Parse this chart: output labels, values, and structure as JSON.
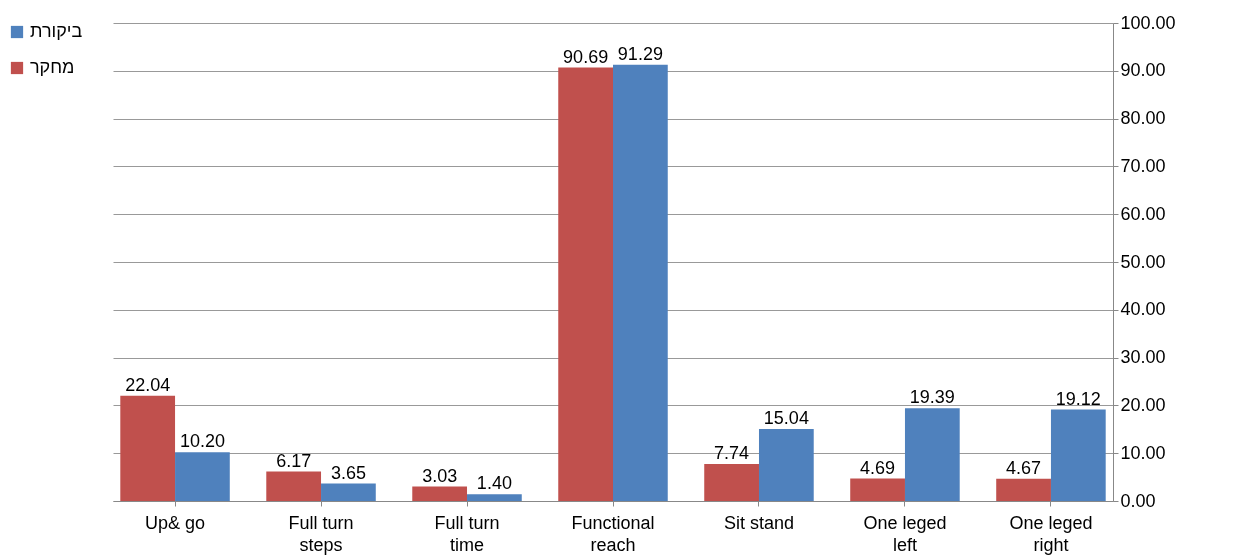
{
  "chart_data": {
    "type": "bar",
    "categories": [
      "Up& go",
      "Full turn steps",
      "Full turn time",
      "Functional reach",
      "Sit stand",
      "One leged left",
      "One leged right"
    ],
    "series": [
      {
        "name": "מחקר",
        "color": "#c0504d",
        "values": [
          22.04,
          6.17,
          3.03,
          90.69,
          7.74,
          4.69,
          4.67
        ],
        "value_labels": [
          "22.04",
          "6.17",
          "3.03",
          "90.69",
          "7.74",
          "4.69",
          "4.67"
        ]
      },
      {
        "name": "ביקורת",
        "color": "#4f81bd",
        "values": [
          10.2,
          3.65,
          1.4,
          91.29,
          15.04,
          19.39,
          19.12
        ],
        "value_labels": [
          "10.20",
          "3.65",
          "1.40",
          "91.29",
          "15.04",
          "19.39",
          "19.12"
        ]
      }
    ],
    "ylim": [
      0,
      100
    ],
    "yticks": [
      {
        "value": 0,
        "label": "0.00"
      },
      {
        "value": 10,
        "label": "10.00"
      },
      {
        "value": 20,
        "label": "20.00"
      },
      {
        "value": 30,
        "label": "30.00"
      },
      {
        "value": 40,
        "label": "40.00"
      },
      {
        "value": 50,
        "label": "50.00"
      },
      {
        "value": 60,
        "label": "60.00"
      },
      {
        "value": 70,
        "label": "70.00"
      },
      {
        "value": 80,
        "label": "80.00"
      },
      {
        "value": 90,
        "label": "90.00"
      },
      {
        "value": 100,
        "label": "100.00"
      }
    ],
    "grid": "y",
    "legend": "left"
  }
}
